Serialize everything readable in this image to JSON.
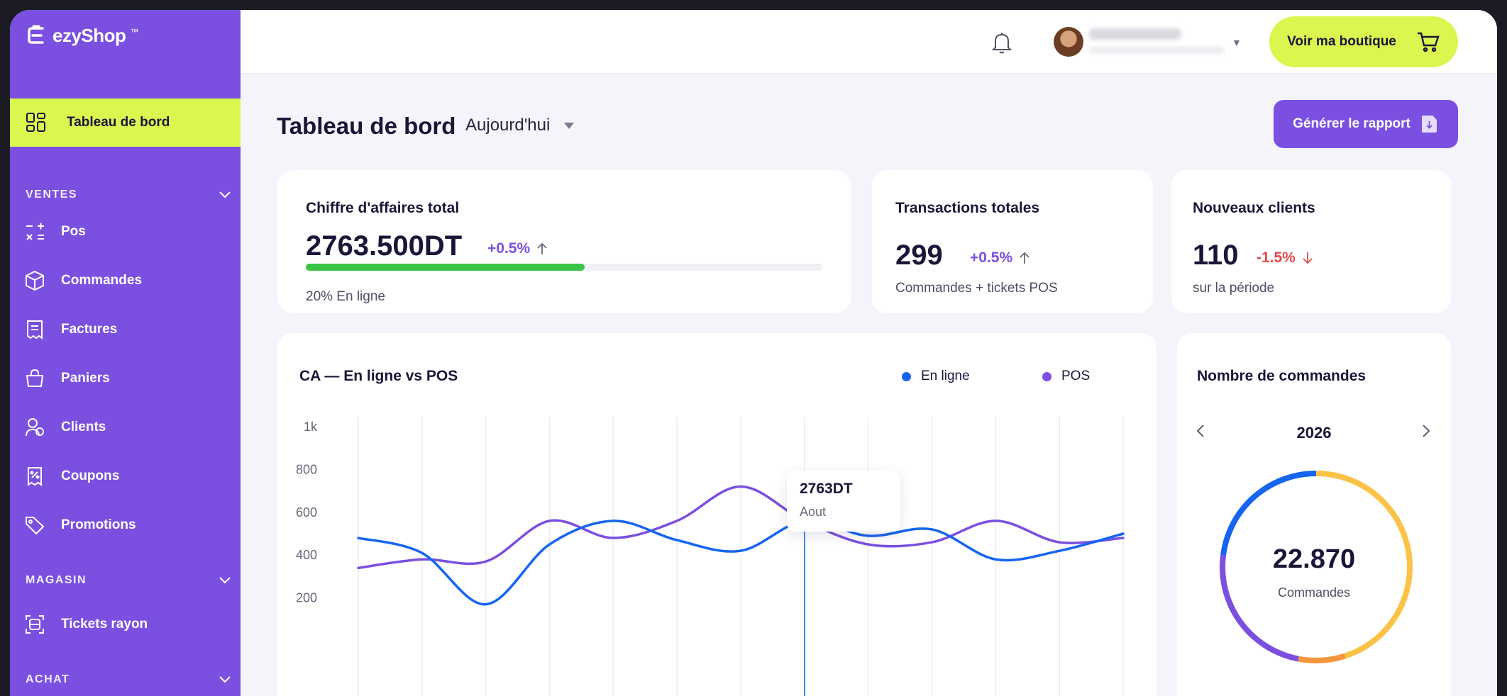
{
  "brand": {
    "name": "ezyShop",
    "trademark": "™"
  },
  "sidebar": {
    "active": {
      "label": "Tableau de bord",
      "icon": "dashboard-icon"
    },
    "sections": [
      {
        "label": "VENTES",
        "items": [
          {
            "label": "Pos",
            "icon": "calculator-icon"
          },
          {
            "label": "Commandes",
            "icon": "box-icon"
          },
          {
            "label": "Factures",
            "icon": "receipt-icon"
          },
          {
            "label": "Paniers",
            "icon": "basket-icon"
          },
          {
            "label": "Clients",
            "icon": "users-icon"
          },
          {
            "label": "Coupons",
            "icon": "coupon-icon"
          },
          {
            "label": "Promotions",
            "icon": "tag-icon"
          }
        ]
      },
      {
        "label": "MAGASIN",
        "items": [
          {
            "label": "Tickets rayon",
            "icon": "scan-icon"
          }
        ]
      },
      {
        "label": "ACHAT",
        "items": []
      }
    ]
  },
  "header": {
    "shop_button": "Voir ma boutique"
  },
  "page": {
    "title": "Tableau de bord",
    "period": "Aujourd'hui",
    "report_button": "Générer le rapport"
  },
  "kpis": {
    "revenue": {
      "title": "Chiffre d'affaires total",
      "value": "2763.500DT",
      "delta": "+0.5%",
      "progress": 0.54,
      "sub": "20% En ligne"
    },
    "transactions": {
      "title": "Transactions totales",
      "value": "299",
      "delta": "+0.5%",
      "sub": "Commandes + tickets POS"
    },
    "clients": {
      "title": "Nouveaux clients",
      "value": "110",
      "delta": "-1.5%",
      "sub": "sur la période"
    }
  },
  "colors": {
    "purple": "#7b4fe0",
    "lime": "#d9f74f",
    "blue": "#1565f0",
    "green": "#3bc445",
    "red": "#e5484d",
    "orange": "#f59540",
    "yellow": "#fac247"
  },
  "chart_data": [
    {
      "type": "line",
      "title": "CA — En ligne vs POS",
      "y_ticks": [
        "1k",
        "800",
        "600",
        "400",
        "200"
      ],
      "ylim": [
        0,
        1000
      ],
      "grid": "vertical",
      "legend": "top-right",
      "x": [
        0,
        1,
        2,
        3,
        4,
        5,
        6,
        7,
        8,
        9,
        10,
        11,
        12
      ],
      "series": [
        {
          "name": "En ligne",
          "color": "#1565f0",
          "values": [
            480,
            410,
            170,
            450,
            560,
            470,
            420,
            560,
            490,
            520,
            380,
            420,
            500
          ]
        },
        {
          "name": "POS",
          "color": "#7b4fe0",
          "values": [
            340,
            380,
            370,
            560,
            480,
            560,
            720,
            560,
            450,
            460,
            560,
            460,
            480
          ]
        }
      ],
      "tooltip": {
        "value": "2763DT",
        "label": "Aout",
        "index": 7
      }
    },
    {
      "type": "pie",
      "title": "Nombre de commandes",
      "year": "2026",
      "center_value": "22.870",
      "center_label": "Commandes",
      "slices": [
        {
          "color": "#fac247",
          "value": 45
        },
        {
          "color": "#f59540",
          "value": 8
        },
        {
          "color": "#7b4fe0",
          "value": 24
        },
        {
          "color": "#1565f0",
          "value": 23
        }
      ]
    }
  ]
}
